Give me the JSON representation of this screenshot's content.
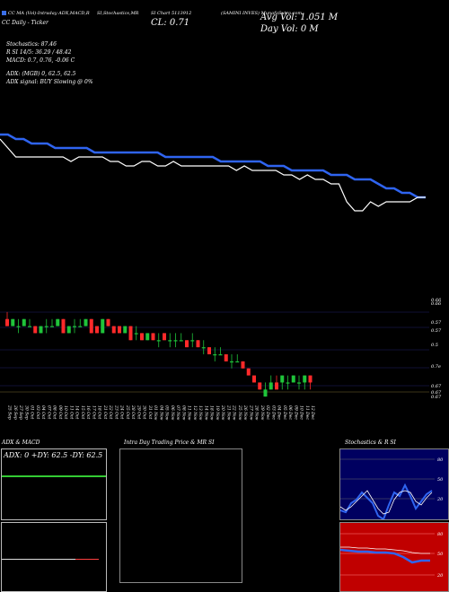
{
  "header": {
    "legend_code": "CC MA",
    "legend_rest": "(Vol)-Intraday ADX,MACD,R",
    "line2": "CC  Daily - Ticker",
    "col2": "SI,Stochastics,MR",
    "col3": "SI Chart 5113912",
    "close": "CL: 0.71",
    "company": "(SAMINI INVES) MunafaSutra.com",
    "avg_vol": "Avg Vol: 1.051 M",
    "day_vol": "Day Vol: 0   M"
  },
  "indicators": {
    "stochastics": "Stochastics: 87.46",
    "rsi": "R            SI 14/5: 36.29 / 48.42",
    "macd": "MACD: 0.7, 0.76, -0.06  C",
    "adx": "ADX:                           (MGB) 0, 62.5, 62.5",
    "adx_signal": "ADX  signal:                                      BUY Slowing @ 0%"
  },
  "price_axis": [
    "0.66",
    "0.66",
    "0.57",
    "0.57",
    "0.5",
    "0.7e",
    "0.67",
    "0.67",
    "0.67"
  ],
  "dates": [
    "25 Sep",
    "26 Sep",
    "27 Sep",
    "30 Sep",
    "01 Oct",
    "03 Oct",
    "04 Oct",
    "07 Oct",
    "08 Oct",
    "09 Oct",
    "10 Oct",
    "11 Oct",
    "14 Oct",
    "15 Oct",
    "16 Oct",
    "17 Oct",
    "18 Oct",
    "21 Oct",
    "22 Oct",
    "23 Oct",
    "24 Oct",
    "25 Oct",
    "28 Oct",
    "29 Oct",
    "30 Oct",
    "31 Oct",
    "01 Nov",
    "04 Nov",
    "05 Nov",
    "06 Nov",
    "07 Nov",
    "08 Nov",
    "11 Nov",
    "12 Nov",
    "13 Nov",
    "14 Nov",
    "18 Nov",
    "19 Nov",
    "20 Nov",
    "21 Nov",
    "22 Nov",
    "25 Nov",
    "26 Nov",
    "27 Nov",
    "28 Nov",
    "29 Nov",
    "02 Dec",
    "03 Dec",
    "04 Dec",
    "05 Dec",
    "06 Dec",
    "09 Dec",
    "10 Dec",
    "11 Dec",
    "12 Dec"
  ],
  "panels": {
    "adx_title": "ADX  & MACD",
    "adx_values": "ADX: 0    +DY: 62.5  -DY: 62.5",
    "intraday_title": "Intra  Day Trading Price  & MR                   SI",
    "stoch_title": "Stochastics & R                  SI",
    "stoch_ticks": [
      "80",
      "50",
      "20"
    ],
    "rsi_ticks": [
      "80",
      "50",
      "20"
    ]
  },
  "colors": {
    "blue_line": "#2f64f0",
    "white_line": "#ffffff",
    "up_candle": "#1fc43a",
    "down_candle": "#ff2a2a",
    "green_line": "#33cc33",
    "stoch_bg": "#000060",
    "rsi_bg": "#c00000"
  },
  "chart_data": [
    {
      "type": "line",
      "series": [
        {
          "values": [
            0.8,
            0.8,
            0.79,
            0.79,
            0.78,
            0.78,
            0.78,
            0.77,
            0.77,
            0.77,
            0.77,
            0.77,
            0.76,
            0.76,
            0.76,
            0.76,
            0.76,
            0.76,
            0.76,
            0.76,
            0.76,
            0.75,
            0.75,
            0.75,
            0.75,
            0.75,
            0.75,
            0.75,
            0.74,
            0.74,
            0.74,
            0.74,
            0.74,
            0.74,
            0.73,
            0.73,
            0.73,
            0.72,
            0.72,
            0.72,
            0.72,
            0.72,
            0.71,
            0.71,
            0.71,
            0.7,
            0.7,
            0.7,
            0.69,
            0.68,
            0.68,
            0.67,
            0.67,
            0.66,
            0.66
          ]
        },
        {
          "values": [
            0.79,
            0.77,
            0.75,
            0.75,
            0.75,
            0.75,
            0.75,
            0.75,
            0.75,
            0.74,
            0.75,
            0.75,
            0.75,
            0.75,
            0.74,
            0.74,
            0.73,
            0.73,
            0.74,
            0.74,
            0.73,
            0.73,
            0.74,
            0.73,
            0.73,
            0.73,
            0.73,
            0.73,
            0.73,
            0.73,
            0.72,
            0.73,
            0.72,
            0.72,
            0.72,
            0.72,
            0.71,
            0.71,
            0.7,
            0.71,
            0.7,
            0.7,
            0.69,
            0.69,
            0.65,
            0.63,
            0.63,
            0.65,
            0.64,
            0.65,
            0.65,
            0.65,
            0.65,
            0.66,
            0.66
          ]
        }
      ]
    },
    {
      "type": "candlestick",
      "x": [
        "25 Sep",
        "26 Sep",
        "27 Sep",
        "30 Sep",
        "01 Oct",
        "03 Oct",
        "04 Oct",
        "07 Oct",
        "08 Oct",
        "09 Oct",
        "10 Oct",
        "11 Oct",
        "14 Oct",
        "15 Oct",
        "16 Oct",
        "17 Oct",
        "18 Oct",
        "21 Oct",
        "22 Oct",
        "23 Oct",
        "24 Oct",
        "25 Oct",
        "28 Oct",
        "29 Oct",
        "30 Oct",
        "31 Oct",
        "01 Nov",
        "04 Nov",
        "05 Nov",
        "06 Nov",
        "07 Nov",
        "08 Nov",
        "11 Nov",
        "12 Nov",
        "13 Nov",
        "14 Nov",
        "18 Nov",
        "19 Nov",
        "20 Nov",
        "21 Nov",
        "22 Nov",
        "25 Nov",
        "26 Nov",
        "27 Nov",
        "28 Nov",
        "29 Nov",
        "02 Dec",
        "03 Dec",
        "04 Dec",
        "05 Dec",
        "06 Dec",
        "09 Dec",
        "10 Dec",
        "11 Dec",
        "12 Dec"
      ],
      "open": [
        0.8,
        0.79,
        0.79,
        0.79,
        0.79,
        0.79,
        0.78,
        0.79,
        0.79,
        0.79,
        0.8,
        0.78,
        0.79,
        0.79,
        0.79,
        0.8,
        0.79,
        0.78,
        0.8,
        0.79,
        0.79,
        0.78,
        0.79,
        0.78,
        0.78,
        0.77,
        0.78,
        0.77,
        0.78,
        0.77,
        0.77,
        0.77,
        0.77,
        0.77,
        0.77,
        0.76,
        0.76,
        0.75,
        0.75,
        0.75,
        0.74,
        0.74,
        0.74,
        0.73,
        0.72,
        0.71,
        0.69,
        0.7,
        0.71,
        0.71,
        0.71,
        0.71,
        0.71,
        0.71,
        0.72
      ],
      "close": [
        0.79,
        0.8,
        0.79,
        0.8,
        0.79,
        0.78,
        0.79,
        0.79,
        0.79,
        0.8,
        0.78,
        0.79,
        0.79,
        0.79,
        0.8,
        0.78,
        0.78,
        0.8,
        0.79,
        0.78,
        0.78,
        0.79,
        0.77,
        0.78,
        0.77,
        0.78,
        0.77,
        0.77,
        0.77,
        0.77,
        0.77,
        0.77,
        0.76,
        0.77,
        0.76,
        0.76,
        0.75,
        0.75,
        0.75,
        0.74,
        0.74,
        0.74,
        0.73,
        0.72,
        0.71,
        0.7,
        0.7,
        0.71,
        0.7,
        0.72,
        0.71,
        0.72,
        0.71,
        0.72,
        0.71
      ],
      "high": [
        0.81,
        0.8,
        0.8,
        0.8,
        0.8,
        0.79,
        0.79,
        0.8,
        0.8,
        0.8,
        0.8,
        0.79,
        0.8,
        0.8,
        0.8,
        0.8,
        0.79,
        0.8,
        0.8,
        0.79,
        0.79,
        0.79,
        0.79,
        0.79,
        0.78,
        0.78,
        0.78,
        0.78,
        0.78,
        0.78,
        0.78,
        0.78,
        0.77,
        0.78,
        0.77,
        0.77,
        0.76,
        0.76,
        0.76,
        0.75,
        0.75,
        0.75,
        0.74,
        0.73,
        0.72,
        0.71,
        0.71,
        0.72,
        0.72,
        0.72,
        0.72,
        0.72,
        0.72,
        0.72,
        0.72
      ],
      "low": [
        0.79,
        0.79,
        0.78,
        0.79,
        0.79,
        0.78,
        0.78,
        0.78,
        0.79,
        0.79,
        0.78,
        0.78,
        0.78,
        0.79,
        0.79,
        0.78,
        0.78,
        0.78,
        0.79,
        0.78,
        0.78,
        0.78,
        0.77,
        0.77,
        0.77,
        0.77,
        0.77,
        0.76,
        0.77,
        0.76,
        0.76,
        0.77,
        0.76,
        0.76,
        0.76,
        0.75,
        0.75,
        0.74,
        0.75,
        0.74,
        0.73,
        0.74,
        0.73,
        0.72,
        0.71,
        0.7,
        0.69,
        0.7,
        0.7,
        0.7,
        0.7,
        0.71,
        0.7,
        0.7,
        0.7
      ]
    }
  ]
}
